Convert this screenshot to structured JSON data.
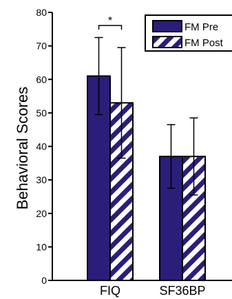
{
  "chart_data": {
    "type": "bar",
    "ylabel": "Behavioral Scores",
    "ylim": [
      0,
      80
    ],
    "yticks": [
      0,
      10,
      20,
      30,
      40,
      50,
      60,
      70,
      80
    ],
    "categories": [
      "FIQ",
      "SF36BP"
    ],
    "series": [
      {
        "name": "FM Pre",
        "values": [
          61,
          37
        ],
        "errors": [
          11.5,
          9.5
        ],
        "color": "#2a1e7a",
        "pattern": "solid"
      },
      {
        "name": "FM Post",
        "values": [
          53,
          37
        ],
        "errors": [
          16.5,
          11.5
        ],
        "color": "#2a1e7a",
        "pattern": "diagonal-stripes"
      }
    ],
    "legend": {
      "position": "top-right"
    },
    "annotations": [
      {
        "text": "*",
        "category": "FIQ",
        "type": "significance-bracket"
      }
    ],
    "grid": false
  }
}
